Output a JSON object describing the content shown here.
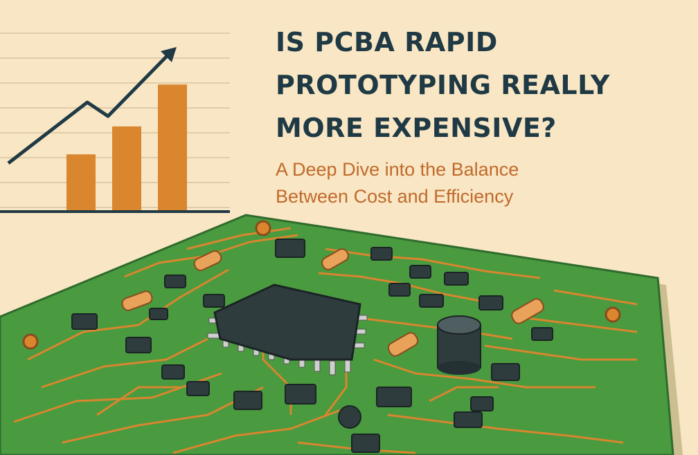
{
  "headline": {
    "lines": [
      "IS PCBA RAPID",
      "PROTOTYPING REALLY",
      "MORE EXPENSIVE?"
    ]
  },
  "subtitle": {
    "lines": [
      "A Deep Dive into the Balance",
      "Between Cost and Efficiency"
    ]
  },
  "chart_data": {
    "type": "bar",
    "categories": [
      "",
      "",
      ""
    ],
    "values": [
      2,
      3,
      4.5
    ],
    "trend_line": true,
    "grid": true
  },
  "colors": {
    "background": "#f8e6c4",
    "headline": "#1f3a45",
    "subtitle": "#c06a2b",
    "bar": "#d9862f",
    "board": "#4a9a3f",
    "trace": "#d9862f",
    "chip": "#2e3c3e"
  }
}
